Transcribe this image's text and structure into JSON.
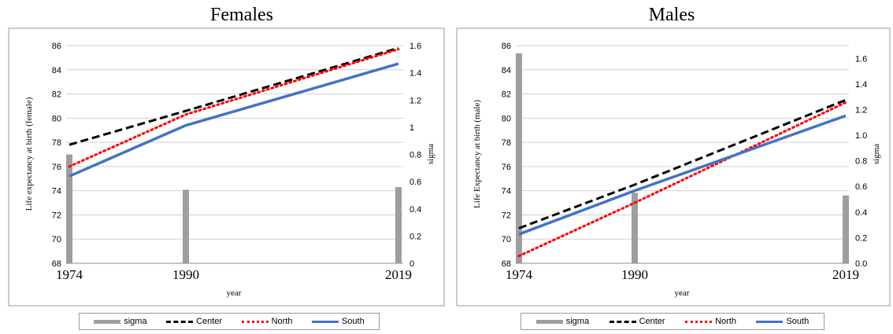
{
  "chart_data": [
    {
      "type": "line",
      "title": "Females",
      "xlabel": "year",
      "ylabel": "Life expectancy at birth (female)",
      "y2label": "sigma",
      "x": [
        "1974",
        "1990",
        "2019"
      ],
      "ylim": [
        68,
        86
      ],
      "y2lim": [
        0,
        1.6
      ],
      "y2ticks": [
        "0",
        "0.2",
        "0.4",
        "0.6",
        "0.8",
        "1",
        "1.2",
        "1.4",
        "1.6"
      ],
      "grid": true,
      "legend_position": "bottom",
      "series": [
        {
          "name": "sigma",
          "type": "bar",
          "axis": "secondary",
          "values": [
            0.8,
            0.54,
            0.56
          ],
          "color": "#9e9e9e"
        },
        {
          "name": "Center",
          "type": "line",
          "style": "dashed",
          "values": [
            77.8,
            80.6,
            85.8
          ],
          "color": "#000000"
        },
        {
          "name": "North",
          "type": "line",
          "style": "dotted",
          "values": [
            76.0,
            80.3,
            85.7
          ],
          "color": "#ff0000"
        },
        {
          "name": "South",
          "type": "line",
          "style": "solid",
          "values": [
            75.2,
            79.4,
            84.5
          ],
          "color": "#4472c4"
        }
      ]
    },
    {
      "type": "line",
      "title": "Males",
      "xlabel": "year",
      "ylabel": "Life Expectancy at birth (male)",
      "y2label": "sigma",
      "x": [
        "1974",
        "1990",
        "2019"
      ],
      "ylim": [
        68,
        86
      ],
      "y2lim": [
        0,
        1.7
      ],
      "y2ticks": [
        "0.0",
        "0.2",
        "0.4",
        "0.6",
        "0.8",
        "1.0",
        "1.2",
        "1.4",
        "1.6"
      ],
      "grid": true,
      "legend_position": "bottom",
      "series": [
        {
          "name": "sigma",
          "type": "bar",
          "axis": "secondary",
          "values": [
            1.64,
            0.55,
            0.53
          ],
          "color": "#9e9e9e"
        },
        {
          "name": "Center",
          "type": "line",
          "style": "dashed",
          "values": [
            70.9,
            74.5,
            81.5
          ],
          "color": "#000000"
        },
        {
          "name": "North",
          "type": "line",
          "style": "dotted",
          "values": [
            68.6,
            73.0,
            81.3
          ],
          "color": "#ff0000"
        },
        {
          "name": "South",
          "type": "line",
          "style": "solid",
          "values": [
            70.4,
            74.0,
            80.2
          ],
          "color": "#4472c4"
        }
      ]
    }
  ]
}
